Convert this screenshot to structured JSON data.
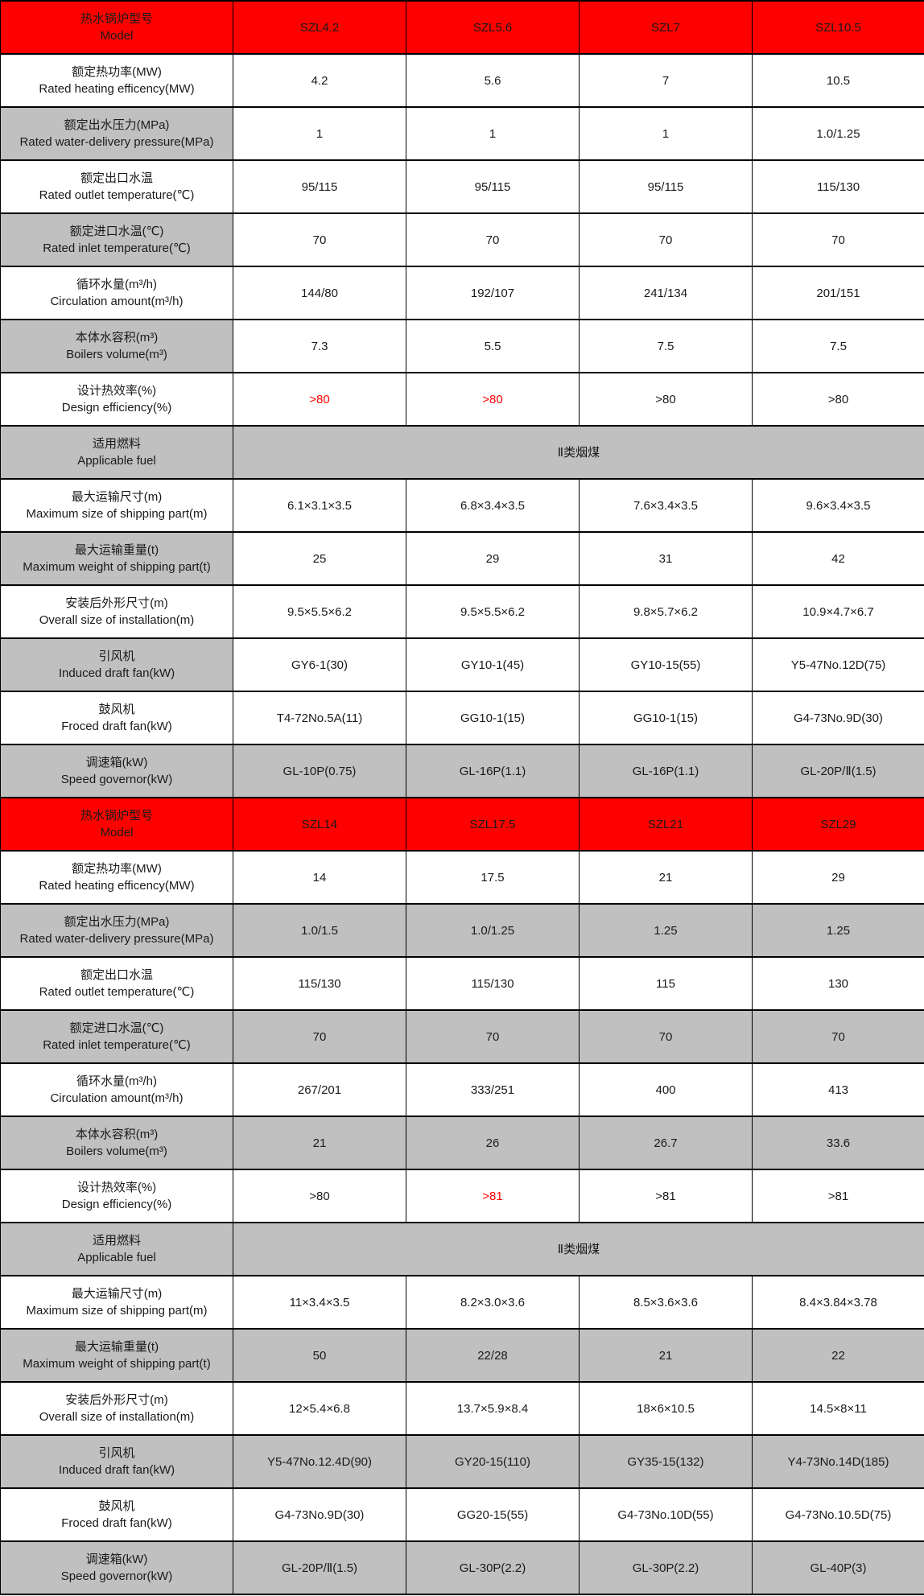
{
  "colors": {
    "model_row_red": "#fe0000",
    "shade_gray": "#c0c0c0",
    "highlight_red": "#ff0000",
    "border_black": "#000000"
  },
  "model_header": {
    "zh": "热水锅炉型号",
    "en": "Model"
  },
  "sections": [
    {
      "models": [
        "SZL4.2",
        "SZL5.6",
        "SZL7",
        "SZL10.5"
      ],
      "rows": [
        {
          "zh": "额定热功率(MW)",
          "en": "Rated heating efficency(MW)",
          "values": [
            "4.2",
            "5.6",
            "7",
            "10.5"
          ],
          "shade": "none"
        },
        {
          "zh": "额定出水压力(MPa)",
          "en": "Rated water-delivery pressure(MPa)",
          "values": [
            "1",
            "1",
            "1",
            "1.0/1.25"
          ],
          "shade": "header"
        },
        {
          "zh": "额定出口水温",
          "en": "Rated outlet temperature(℃)",
          "values": [
            "95/115",
            "95/115",
            "95/115",
            "115/130"
          ],
          "shade": "none"
        },
        {
          "zh": "额定进口水温(℃)",
          "en": "Rated inlet temperature(℃)",
          "values": [
            "70",
            "70",
            "70",
            "70"
          ],
          "shade": "header"
        },
        {
          "zh": "循环水量(m³/h)",
          "en": "Circulation amount(m³/h)",
          "values": [
            "144/80",
            "192/107",
            "241/134",
            "201/151"
          ],
          "shade": "none"
        },
        {
          "zh": "本体水容积(m³)",
          "en": "Boilers volume(m³)",
          "values": [
            "7.3",
            "5.5",
            "7.5",
            "7.5"
          ],
          "shade": "header"
        },
        {
          "zh": "设计热效率(%)",
          "en": "Design efficiency(%)",
          "values": [
            ">80",
            ">80",
            ">80",
            ">80"
          ],
          "shade": "none",
          "red_cols": [
            0,
            1
          ]
        },
        {
          "zh": "适用燃料",
          "en": "Applicable fuel",
          "values": [
            "Ⅱ类烟煤"
          ],
          "colspan": 4,
          "shade": "full"
        },
        {
          "zh": "最大运输尺寸(m)",
          "en": "Maximum size of shipping part(m)",
          "values": [
            "6.1×3.1×3.5",
            "6.8×3.4×3.5",
            "7.6×3.4×3.5",
            "9.6×3.4×3.5"
          ],
          "shade": "none"
        },
        {
          "zh": "最大运输重量(t)",
          "en": "Maximum weight of shipping part(t)",
          "values": [
            "25",
            "29",
            "31",
            "42"
          ],
          "shade": "header"
        },
        {
          "zh": "安装后外形尺寸(m)",
          "en": "Overall size of installation(m)",
          "values": [
            "9.5×5.5×6.2",
            "9.5×5.5×6.2",
            "9.8×5.7×6.2",
            "10.9×4.7×6.7"
          ],
          "shade": "none"
        },
        {
          "zh": "引风机",
          "en": "Induced draft fan(kW)",
          "values": [
            "GY6-1(30)",
            "GY10-1(45)",
            "GY10-15(55)",
            "Y5-47No.12D(75)"
          ],
          "shade": "header"
        },
        {
          "zh": "鼓风机",
          "en": "Froced draft fan(kW)",
          "values": [
            "T4-72No.5A(11)",
            "GG10-1(15)",
            "GG10-1(15)",
            "G4-73No.9D(30)"
          ],
          "shade": "none"
        },
        {
          "zh": "调速箱(kW)",
          "en": "Speed governor(kW)",
          "values": [
            "GL-10P(0.75)",
            "GL-16P(1.1)",
            "GL-16P(1.1)",
            "GL-20P/Ⅱ(1.5)"
          ],
          "shade": "full"
        }
      ]
    },
    {
      "models": [
        "SZL14",
        "SZL17.5",
        "SZL21",
        "SZL29"
      ],
      "rows": [
        {
          "zh": "额定热功率(MW)",
          "en": "Rated heating efficency(MW)",
          "values": [
            "14",
            "17.5",
            "21",
            "29"
          ],
          "shade": "none"
        },
        {
          "zh": "额定出水压力(MPa)",
          "en": "Rated water-delivery pressure(MPa)",
          "values": [
            "1.0/1.5",
            "1.0/1.25",
            "1.25",
            "1.25"
          ],
          "shade": "full"
        },
        {
          "zh": "额定出口水温",
          "en": "Rated outlet temperature(℃)",
          "values": [
            "115/130",
            "115/130",
            "115",
            "130"
          ],
          "shade": "none"
        },
        {
          "zh": "额定进口水温(℃)",
          "en": "Rated inlet temperature(℃)",
          "values": [
            "70",
            "70",
            "70",
            "70"
          ],
          "shade": "full"
        },
        {
          "zh": "循环水量(m³/h)",
          "en": "Circulation amount(m³/h)",
          "values": [
            "267/201",
            "333/251",
            "400",
            "413"
          ],
          "shade": "none"
        },
        {
          "zh": "本体水容积(m³)",
          "en": "Boilers volume(m³)",
          "values": [
            "21",
            "26",
            "26.7",
            "33.6"
          ],
          "shade": "full"
        },
        {
          "zh": "设计热效率(%)",
          "en": "Design efficiency(%)",
          "values": [
            ">80",
            ">81",
            ">81",
            ">81"
          ],
          "shade": "none",
          "red_cols": [
            1
          ]
        },
        {
          "zh": "适用燃料",
          "en": "Applicable fuel",
          "values": [
            "Ⅱ类烟煤"
          ],
          "colspan": 4,
          "shade": "full"
        },
        {
          "zh": "最大运输尺寸(m)",
          "en": "Maximum size of shipping part(m)",
          "values": [
            "11×3.4×3.5",
            "8.2×3.0×3.6",
            "8.5×3.6×3.6",
            "8.4×3.84×3.78"
          ],
          "shade": "none"
        },
        {
          "zh": "最大运输重量(t)",
          "en": "Maximum weight of shipping part(t)",
          "values": [
            "50",
            "22/28",
            "21",
            "22"
          ],
          "shade": "full"
        },
        {
          "zh": "安装后外形尺寸(m)",
          "en": "Overall size of installation(m)",
          "values": [
            "12×5.4×6.8",
            "13.7×5.9×8.4",
            "18×6×10.5",
            "14.5×8×11"
          ],
          "shade": "none"
        },
        {
          "zh": "引风机",
          "en": "Induced draft fan(kW)",
          "values": [
            "Y5-47No.12.4D(90)",
            "GY20-15(110)",
            "GY35-15(132)",
            "Y4-73No.14D(185)"
          ],
          "shade": "full"
        },
        {
          "zh": "鼓风机",
          "en": "Froced draft fan(kW)",
          "values": [
            "G4-73No.9D(30)",
            "GG20-15(55)",
            "G4-73No.10D(55)",
            "G4-73No.10.5D(75)"
          ],
          "shade": "none"
        },
        {
          "zh": "调速箱(kW)",
          "en": "Speed governor(kW)",
          "values": [
            "GL-20P/Ⅱ(1.5)",
            "GL-30P(2.2)",
            "GL-30P(2.2)",
            "GL-40P(3)"
          ],
          "shade": "full"
        }
      ]
    }
  ]
}
